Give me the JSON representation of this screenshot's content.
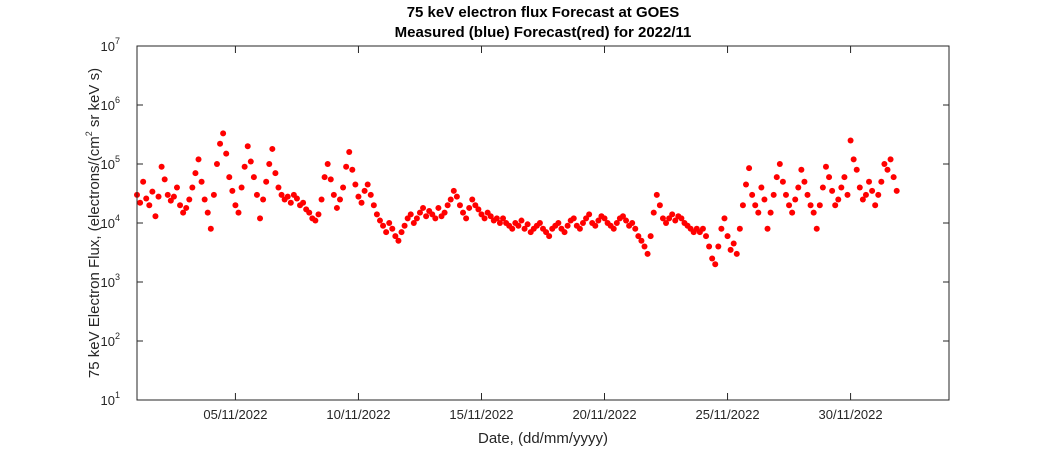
{
  "chart_data": {
    "type": "scatter",
    "title": "75 keV electron flux Forecast at GOES",
    "subtitle": "Measured (blue) Forecast(red) for 2022/11",
    "xlabel": "Date, (dd/mm/yyyy)",
    "ylabel_parts": [
      "75 keV Electron Flux, (electrons/(cm",
      "2",
      " sr keV s)"
    ],
    "x_axis": {
      "type": "date",
      "range": [
        "2022-11-01",
        "2022-12-04"
      ],
      "ticks": [
        "2022-11-05",
        "2022-11-10",
        "2022-11-15",
        "2022-11-20",
        "2022-11-25",
        "2022-11-30"
      ],
      "tick_labels": [
        "05/11/2022",
        "10/11/2022",
        "15/11/2022",
        "20/11/2022",
        "25/11/2022",
        "30/11/2022"
      ]
    },
    "y_axis": {
      "scale": "log",
      "range": [
        10,
        10000000
      ],
      "tick_bases": [
        "10",
        "10",
        "10",
        "10",
        "10",
        "10",
        "10"
      ],
      "tick_exponents": [
        "1",
        "2",
        "3",
        "4",
        "5",
        "6",
        "7"
      ]
    },
    "grid": false,
    "series": [
      {
        "color": "#ff0000",
        "marker": "circle",
        "points": [
          [
            "2022-11-01T00:00",
            30000
          ],
          [
            "2022-11-01T03:00",
            22000
          ],
          [
            "2022-11-01T06:00",
            50000
          ],
          [
            "2022-11-01T09:00",
            26000
          ],
          [
            "2022-11-01T12:00",
            20000
          ],
          [
            "2022-11-01T15:00",
            34000
          ],
          [
            "2022-11-01T18:00",
            13000
          ],
          [
            "2022-11-01T21:00",
            28000
          ],
          [
            "2022-11-02T00:00",
            90000
          ],
          [
            "2022-11-02T03:00",
            55000
          ],
          [
            "2022-11-02T06:00",
            30000
          ],
          [
            "2022-11-02T09:00",
            24000
          ],
          [
            "2022-11-02T12:00",
            28000
          ],
          [
            "2022-11-02T15:00",
            40000
          ],
          [
            "2022-11-02T18:00",
            20000
          ],
          [
            "2022-11-02T21:00",
            15000
          ],
          [
            "2022-11-03T00:00",
            18000
          ],
          [
            "2022-11-03T03:00",
            25000
          ],
          [
            "2022-11-03T06:00",
            40000
          ],
          [
            "2022-11-03T09:00",
            70000
          ],
          [
            "2022-11-03T12:00",
            120000
          ],
          [
            "2022-11-03T15:00",
            50000
          ],
          [
            "2022-11-03T18:00",
            25000
          ],
          [
            "2022-11-03T21:00",
            15000
          ],
          [
            "2022-11-04T00:00",
            8000
          ],
          [
            "2022-11-04T03:00",
            30000
          ],
          [
            "2022-11-04T06:00",
            100000
          ],
          [
            "2022-11-04T09:00",
            220000
          ],
          [
            "2022-11-04T12:00",
            330000
          ],
          [
            "2022-11-04T15:00",
            150000
          ],
          [
            "2022-11-04T18:00",
            60000
          ],
          [
            "2022-11-04T21:00",
            35000
          ],
          [
            "2022-11-05T00:00",
            20000
          ],
          [
            "2022-11-05T03:00",
            15000
          ],
          [
            "2022-11-05T06:00",
            40000
          ],
          [
            "2022-11-05T09:00",
            90000
          ],
          [
            "2022-11-05T12:00",
            200000
          ],
          [
            "2022-11-05T15:00",
            110000
          ],
          [
            "2022-11-05T18:00",
            60000
          ],
          [
            "2022-11-05T21:00",
            30000
          ],
          [
            "2022-11-06T00:00",
            12000
          ],
          [
            "2022-11-06T03:00",
            25000
          ],
          [
            "2022-11-06T06:00",
            50000
          ],
          [
            "2022-11-06T09:00",
            100000
          ],
          [
            "2022-11-06T12:00",
            180000
          ],
          [
            "2022-11-06T15:00",
            70000
          ],
          [
            "2022-11-06T18:00",
            40000
          ],
          [
            "2022-11-06T21:00",
            30000
          ],
          [
            "2022-11-07T00:00",
            25000
          ],
          [
            "2022-11-07T03:00",
            28000
          ],
          [
            "2022-11-07T06:00",
            22000
          ],
          [
            "2022-11-07T09:00",
            30000
          ],
          [
            "2022-11-07T12:00",
            26000
          ],
          [
            "2022-11-07T15:00",
            20000
          ],
          [
            "2022-11-07T18:00",
            22000
          ],
          [
            "2022-11-07T21:00",
            17000
          ],
          [
            "2022-11-08T00:00",
            15000
          ],
          [
            "2022-11-08T03:00",
            12000
          ],
          [
            "2022-11-08T06:00",
            11000
          ],
          [
            "2022-11-08T09:00",
            14000
          ],
          [
            "2022-11-08T12:00",
            25000
          ],
          [
            "2022-11-08T15:00",
            60000
          ],
          [
            "2022-11-08T18:00",
            100000
          ],
          [
            "2022-11-08T21:00",
            55000
          ],
          [
            "2022-11-09T00:00",
            30000
          ],
          [
            "2022-11-09T03:00",
            18000
          ],
          [
            "2022-11-09T06:00",
            25000
          ],
          [
            "2022-11-09T09:00",
            40000
          ],
          [
            "2022-11-09T12:00",
            90000
          ],
          [
            "2022-11-09T15:00",
            160000
          ],
          [
            "2022-11-09T18:00",
            80000
          ],
          [
            "2022-11-09T21:00",
            45000
          ],
          [
            "2022-11-10T00:00",
            28000
          ],
          [
            "2022-11-10T03:00",
            22000
          ],
          [
            "2022-11-10T06:00",
            35000
          ],
          [
            "2022-11-10T09:00",
            45000
          ],
          [
            "2022-11-10T12:00",
            30000
          ],
          [
            "2022-11-10T15:00",
            20000
          ],
          [
            "2022-11-10T18:00",
            14000
          ],
          [
            "2022-11-10T21:00",
            11000
          ],
          [
            "2022-11-11T00:00",
            9000
          ],
          [
            "2022-11-11T03:00",
            7000
          ],
          [
            "2022-11-11T06:00",
            10000
          ],
          [
            "2022-11-11T09:00",
            8000
          ],
          [
            "2022-11-11T12:00",
            6000
          ],
          [
            "2022-11-11T15:00",
            5000
          ],
          [
            "2022-11-11T18:00",
            7000
          ],
          [
            "2022-11-11T21:00",
            9000
          ],
          [
            "2022-11-12T00:00",
            12000
          ],
          [
            "2022-11-12T03:00",
            14000
          ],
          [
            "2022-11-12T06:00",
            10000
          ],
          [
            "2022-11-12T09:00",
            12000
          ],
          [
            "2022-11-12T12:00",
            15000
          ],
          [
            "2022-11-12T15:00",
            18000
          ],
          [
            "2022-11-12T18:00",
            13000
          ],
          [
            "2022-11-12T21:00",
            16000
          ],
          [
            "2022-11-13T00:00",
            14000
          ],
          [
            "2022-11-13T03:00",
            12000
          ],
          [
            "2022-11-13T06:00",
            18000
          ],
          [
            "2022-11-13T09:00",
            13000
          ],
          [
            "2022-11-13T12:00",
            15000
          ],
          [
            "2022-11-13T15:00",
            20000
          ],
          [
            "2022-11-13T18:00",
            25000
          ],
          [
            "2022-11-13T21:00",
            35000
          ],
          [
            "2022-11-14T00:00",
            28000
          ],
          [
            "2022-11-14T03:00",
            20000
          ],
          [
            "2022-11-14T06:00",
            15000
          ],
          [
            "2022-11-14T09:00",
            12000
          ],
          [
            "2022-11-14T12:00",
            18000
          ],
          [
            "2022-11-14T15:00",
            25000
          ],
          [
            "2022-11-14T18:00",
            20000
          ],
          [
            "2022-11-14T21:00",
            17000
          ],
          [
            "2022-11-15T00:00",
            14000
          ],
          [
            "2022-11-15T03:00",
            12000
          ],
          [
            "2022-11-15T06:00",
            15000
          ],
          [
            "2022-11-15T09:00",
            13000
          ],
          [
            "2022-11-15T12:00",
            11000
          ],
          [
            "2022-11-15T15:00",
            12000
          ],
          [
            "2022-11-15T18:00",
            10000
          ],
          [
            "2022-11-15T21:00",
            12000
          ],
          [
            "2022-11-16T00:00",
            10000
          ],
          [
            "2022-11-16T03:00",
            9000
          ],
          [
            "2022-11-16T06:00",
            8000
          ],
          [
            "2022-11-16T09:00",
            10000
          ],
          [
            "2022-11-16T12:00",
            9000
          ],
          [
            "2022-11-16T15:00",
            11000
          ],
          [
            "2022-11-16T18:00",
            8000
          ],
          [
            "2022-11-16T21:00",
            9500
          ],
          [
            "2022-11-17T00:00",
            7000
          ],
          [
            "2022-11-17T03:00",
            8000
          ],
          [
            "2022-11-17T06:00",
            9000
          ],
          [
            "2022-11-17T09:00",
            10000
          ],
          [
            "2022-11-17T12:00",
            8000
          ],
          [
            "2022-11-17T15:00",
            7000
          ],
          [
            "2022-11-17T18:00",
            6000
          ],
          [
            "2022-11-17T21:00",
            8000
          ],
          [
            "2022-11-18T00:00",
            9000
          ],
          [
            "2022-11-18T03:00",
            10000
          ],
          [
            "2022-11-18T06:00",
            8000
          ],
          [
            "2022-11-18T09:00",
            7000
          ],
          [
            "2022-11-18T12:00",
            9000
          ],
          [
            "2022-11-18T15:00",
            11000
          ],
          [
            "2022-11-18T18:00",
            12000
          ],
          [
            "2022-11-18T21:00",
            9000
          ],
          [
            "2022-11-19T00:00",
            8000
          ],
          [
            "2022-11-19T03:00",
            10000
          ],
          [
            "2022-11-19T06:00",
            12000
          ],
          [
            "2022-11-19T09:00",
            14000
          ],
          [
            "2022-11-19T12:00",
            10000
          ],
          [
            "2022-11-19T15:00",
            9000
          ],
          [
            "2022-11-19T18:00",
            11000
          ],
          [
            "2022-11-19T21:00",
            13000
          ],
          [
            "2022-11-20T00:00",
            12000
          ],
          [
            "2022-11-20T03:00",
            10000
          ],
          [
            "2022-11-20T06:00",
            9000
          ],
          [
            "2022-11-20T09:00",
            8000
          ],
          [
            "2022-11-20T12:00",
            10000
          ],
          [
            "2022-11-20T15:00",
            12000
          ],
          [
            "2022-11-20T18:00",
            13000
          ],
          [
            "2022-11-20T21:00",
            11000
          ],
          [
            "2022-11-21T00:00",
            9000
          ],
          [
            "2022-11-21T03:00",
            10000
          ],
          [
            "2022-11-21T06:00",
            8000
          ],
          [
            "2022-11-21T09:00",
            6000
          ],
          [
            "2022-11-21T12:00",
            5000
          ],
          [
            "2022-11-21T15:00",
            4000
          ],
          [
            "2022-11-21T18:00",
            3000
          ],
          [
            "2022-11-21T21:00",
            6000
          ],
          [
            "2022-11-22T00:00",
            15000
          ],
          [
            "2022-11-22T03:00",
            30000
          ],
          [
            "2022-11-22T06:00",
            20000
          ],
          [
            "2022-11-22T09:00",
            12000
          ],
          [
            "2022-11-22T12:00",
            10000
          ],
          [
            "2022-11-22T15:00",
            12000
          ],
          [
            "2022-11-22T18:00",
            14000
          ],
          [
            "2022-11-22T21:00",
            11000
          ],
          [
            "2022-11-23T00:00",
            13000
          ],
          [
            "2022-11-23T03:00",
            12000
          ],
          [
            "2022-11-23T06:00",
            10000
          ],
          [
            "2022-11-23T09:00",
            9000
          ],
          [
            "2022-11-23T12:00",
            8000
          ],
          [
            "2022-11-23T15:00",
            7000
          ],
          [
            "2022-11-23T18:00",
            8000
          ],
          [
            "2022-11-23T21:00",
            7000
          ],
          [
            "2022-11-24T00:00",
            8000
          ],
          [
            "2022-11-24T03:00",
            6000
          ],
          [
            "2022-11-24T06:00",
            4000
          ],
          [
            "2022-11-24T09:00",
            2500
          ],
          [
            "2022-11-24T12:00",
            2000
          ],
          [
            "2022-11-24T15:00",
            4000
          ],
          [
            "2022-11-24T18:00",
            8000
          ],
          [
            "2022-11-24T21:00",
            12000
          ],
          [
            "2022-11-25T00:00",
            6000
          ],
          [
            "2022-11-25T03:00",
            3500
          ],
          [
            "2022-11-25T06:00",
            4500
          ],
          [
            "2022-11-25T09:00",
            3000
          ],
          [
            "2022-11-25T12:00",
            8000
          ],
          [
            "2022-11-25T15:00",
            20000
          ],
          [
            "2022-11-25T18:00",
            45000
          ],
          [
            "2022-11-25T21:00",
            85000
          ],
          [
            "2022-11-26T00:00",
            30000
          ],
          [
            "2022-11-26T03:00",
            20000
          ],
          [
            "2022-11-26T06:00",
            15000
          ],
          [
            "2022-11-26T09:00",
            40000
          ],
          [
            "2022-11-26T12:00",
            25000
          ],
          [
            "2022-11-26T15:00",
            8000
          ],
          [
            "2022-11-26T18:00",
            15000
          ],
          [
            "2022-11-26T21:00",
            30000
          ],
          [
            "2022-11-27T00:00",
            60000
          ],
          [
            "2022-11-27T03:00",
            100000
          ],
          [
            "2022-11-27T06:00",
            50000
          ],
          [
            "2022-11-27T09:00",
            30000
          ],
          [
            "2022-11-27T12:00",
            20000
          ],
          [
            "2022-11-27T15:00",
            15000
          ],
          [
            "2022-11-27T18:00",
            25000
          ],
          [
            "2022-11-27T21:00",
            40000
          ],
          [
            "2022-11-28T00:00",
            80000
          ],
          [
            "2022-11-28T03:00",
            50000
          ],
          [
            "2022-11-28T06:00",
            30000
          ],
          [
            "2022-11-28T09:00",
            20000
          ],
          [
            "2022-11-28T12:00",
            15000
          ],
          [
            "2022-11-28T15:00",
            8000
          ],
          [
            "2022-11-28T18:00",
            20000
          ],
          [
            "2022-11-28T21:00",
            40000
          ],
          [
            "2022-11-29T00:00",
            90000
          ],
          [
            "2022-11-29T03:00",
            60000
          ],
          [
            "2022-11-29T06:00",
            35000
          ],
          [
            "2022-11-29T09:00",
            20000
          ],
          [
            "2022-11-29T12:00",
            25000
          ],
          [
            "2022-11-29T15:00",
            40000
          ],
          [
            "2022-11-29T18:00",
            60000
          ],
          [
            "2022-11-29T21:00",
            30000
          ],
          [
            "2022-11-30T00:00",
            250000
          ],
          [
            "2022-11-30T03:00",
            120000
          ],
          [
            "2022-11-30T06:00",
            80000
          ],
          [
            "2022-11-30T09:00",
            40000
          ],
          [
            "2022-11-30T12:00",
            25000
          ],
          [
            "2022-11-30T15:00",
            30000
          ],
          [
            "2022-11-30T18:00",
            50000
          ],
          [
            "2022-11-30T21:00",
            35000
          ],
          [
            "2022-12-01T00:00",
            20000
          ],
          [
            "2022-12-01T03:00",
            30000
          ],
          [
            "2022-12-01T06:00",
            50000
          ],
          [
            "2022-12-01T09:00",
            100000
          ],
          [
            "2022-12-01T12:00",
            80000
          ],
          [
            "2022-12-01T15:00",
            120000
          ],
          [
            "2022-12-01T18:00",
            60000
          ],
          [
            "2022-12-01T21:00",
            35000
          ]
        ]
      }
    ]
  }
}
